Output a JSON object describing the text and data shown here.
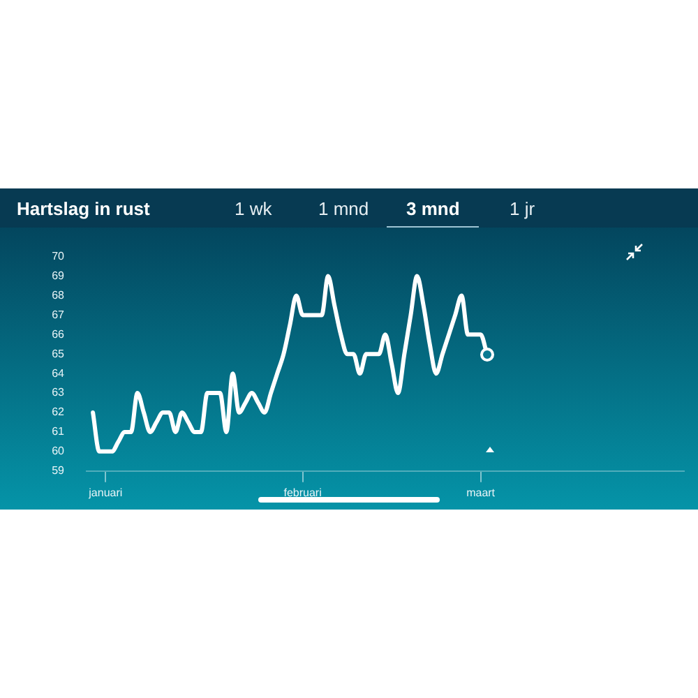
{
  "chart_data": {
    "type": "line",
    "title": "Hartslag in rust",
    "annotations": [
      "1 wk",
      "1 mnd",
      "3 mnd",
      "1 jr"
    ],
    "categories": [
      null,
      null,
      null,
      "januari",
      null,
      null,
      null,
      null,
      null,
      null,
      null,
      null,
      null,
      null,
      null,
      null,
      null,
      null,
      null,
      null,
      null,
      null,
      null,
      null,
      null,
      null,
      null,
      null,
      null,
      null,
      null,
      null,
      null,
      null,
      "februari",
      null,
      null,
      null,
      null,
      null,
      null,
      null,
      null,
      null,
      null,
      null,
      null,
      null,
      null,
      null,
      null,
      null,
      null,
      null,
      null,
      null,
      null,
      null,
      null,
      null,
      null,
      null,
      "maart",
      null,
      null,
      null,
      null,
      null,
      null,
      null,
      null,
      null,
      null,
      null,
      null,
      null,
      null,
      null,
      null,
      null,
      null,
      null,
      null,
      null,
      null,
      null,
      null,
      null,
      null,
      null,
      null,
      null,
      null,
      null,
      null
    ],
    "values": [
      null,
      62,
      60,
      60,
      60,
      60.5,
      61,
      61,
      63,
      62,
      61,
      61.5,
      62,
      62,
      61,
      62,
      61.5,
      61,
      61,
      63,
      63,
      63,
      61,
      64,
      62,
      62.5,
      63,
      62.5,
      62,
      63,
      64,
      65,
      66.5,
      68,
      67,
      67,
      67,
      67,
      69,
      67.5,
      66,
      65,
      65,
      64,
      65,
      65,
      65,
      66,
      64.5,
      63,
      65,
      67,
      69,
      67.5,
      65.5,
      64,
      65,
      66,
      67,
      68,
      66,
      66,
      66,
      65,
      null,
      null,
      null,
      null,
      null,
      null,
      null,
      null,
      null,
      null,
      null,
      null,
      null,
      null,
      null,
      null,
      null,
      null,
      null,
      null,
      null,
      null,
      null,
      null,
      null,
      null,
      null,
      null,
      null,
      null,
      null
    ],
    "color": "#ffffff",
    "ylim": [
      59,
      70
    ],
    "yticks": [
      59,
      60,
      61,
      62,
      63,
      64,
      65,
      66,
      67,
      68,
      69,
      70
    ],
    "grid": false,
    "legend": false,
    "marker": "none",
    "line_style": "solid"
  }
}
